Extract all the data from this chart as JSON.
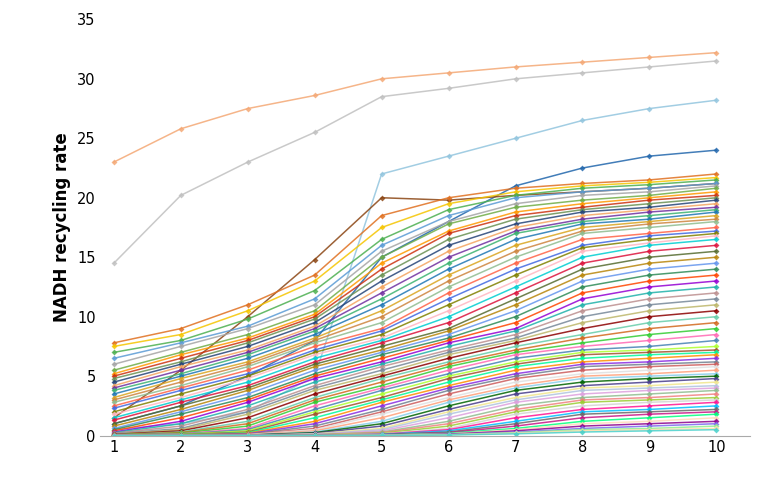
{
  "ylabel": "NADH recycling rate",
  "xlim": [
    0.8,
    10.5
  ],
  "ylim": [
    0,
    35
  ],
  "xticks": [
    1,
    2,
    3,
    4,
    5,
    6,
    7,
    8,
    9,
    10
  ],
  "yticks": [
    0,
    5,
    10,
    15,
    20,
    25,
    30,
    35
  ],
  "series": [
    {
      "color": "#F4A875",
      "y": [
        23.0,
        25.8,
        27.5,
        28.6,
        30.0,
        30.5,
        31.0,
        31.4,
        31.8,
        32.2
      ]
    },
    {
      "color": "#C0C0C0",
      "y": [
        14.5,
        20.2,
        23.0,
        25.5,
        28.5,
        29.2,
        30.0,
        30.5,
        31.0,
        31.5
      ]
    },
    {
      "color": "#92C5DE",
      "y": [
        0.5,
        1.0,
        2.0,
        5.0,
        22.0,
        23.5,
        25.0,
        26.5,
        27.5,
        28.2
      ]
    },
    {
      "color": "#2166AC",
      "y": [
        1.0,
        2.5,
        5.0,
        8.0,
        15.0,
        18.0,
        21.0,
        22.5,
        23.5,
        24.0
      ]
    },
    {
      "color": "#8B4513",
      "y": [
        1.5,
        5.5,
        10.0,
        14.8,
        20.0,
        19.8,
        20.2,
        20.5,
        20.8,
        21.2
      ]
    },
    {
      "color": "#E07020",
      "y": [
        7.8,
        9.0,
        11.0,
        13.5,
        18.5,
        20.0,
        20.8,
        21.2,
        21.5,
        22.0
      ]
    },
    {
      "color": "#F5C500",
      "y": [
        7.5,
        8.5,
        10.5,
        13.0,
        17.5,
        19.5,
        20.5,
        21.0,
        21.3,
        21.7
      ]
    },
    {
      "color": "#4CAF50",
      "y": [
        7.0,
        8.0,
        9.8,
        12.2,
        16.5,
        19.0,
        20.2,
        20.8,
        21.1,
        21.5
      ]
    },
    {
      "color": "#5B9BD5",
      "y": [
        6.5,
        7.8,
        9.2,
        11.5,
        16.0,
        18.5,
        20.0,
        20.5,
        20.8,
        21.2
      ]
    },
    {
      "color": "#A5A5A5",
      "y": [
        6.0,
        7.5,
        9.0,
        11.0,
        15.5,
        18.0,
        19.5,
        20.2,
        20.5,
        21.0
      ]
    },
    {
      "color": "#70AD47",
      "y": [
        5.5,
        7.0,
        8.5,
        10.5,
        15.0,
        17.8,
        19.2,
        19.8,
        20.2,
        20.8
      ]
    },
    {
      "color": "#FF9900",
      "y": [
        5.2,
        6.8,
        8.2,
        10.2,
        14.5,
        17.2,
        18.8,
        19.5,
        20.0,
        20.5
      ]
    },
    {
      "color": "#CC3311",
      "y": [
        5.0,
        6.5,
        8.0,
        10.0,
        14.0,
        17.0,
        18.5,
        19.2,
        19.8,
        20.2
      ]
    },
    {
      "color": "#6A9153",
      "y": [
        4.8,
        6.2,
        7.8,
        9.8,
        13.5,
        16.5,
        18.2,
        19.0,
        19.5,
        20.0
      ]
    },
    {
      "color": "#264478",
      "y": [
        4.5,
        6.0,
        7.5,
        9.5,
        13.0,
        16.0,
        17.8,
        18.8,
        19.2,
        19.8
      ]
    },
    {
      "color": "#F4A460",
      "y": [
        4.2,
        5.8,
        7.2,
        9.2,
        12.5,
        15.5,
        17.5,
        18.5,
        19.0,
        19.5
      ]
    },
    {
      "color": "#7030A0",
      "y": [
        4.0,
        5.5,
        7.0,
        9.0,
        12.0,
        15.0,
        17.2,
        18.2,
        18.8,
        19.2
      ]
    },
    {
      "color": "#3CB371",
      "y": [
        3.8,
        5.2,
        6.8,
        8.8,
        11.5,
        14.5,
        17.0,
        18.0,
        18.5,
        19.0
      ]
    },
    {
      "color": "#1F77B4",
      "y": [
        3.5,
        5.0,
        6.5,
        8.5,
        11.0,
        14.0,
        16.5,
        17.8,
        18.2,
        18.8
      ]
    },
    {
      "color": "#DAA520",
      "y": [
        3.2,
        4.8,
        6.2,
        8.2,
        10.5,
        13.5,
        16.0,
        17.5,
        18.0,
        18.5
      ]
    },
    {
      "color": "#CD853F",
      "y": [
        3.0,
        4.5,
        6.0,
        8.0,
        10.0,
        13.0,
        15.5,
        17.2,
        17.8,
        18.2
      ]
    },
    {
      "color": "#8FBC8F",
      "y": [
        2.8,
        4.2,
        5.8,
        7.8,
        9.5,
        12.5,
        15.0,
        17.0,
        17.5,
        18.0
      ]
    },
    {
      "color": "#FF6347",
      "y": [
        2.5,
        4.0,
        5.5,
        7.5,
        9.0,
        12.0,
        14.5,
        16.5,
        17.0,
        17.5
      ]
    },
    {
      "color": "#4169E1",
      "y": [
        2.3,
        3.8,
        5.2,
        7.2,
        8.8,
        11.5,
        14.0,
        16.0,
        16.8,
        17.2
      ]
    },
    {
      "color": "#808000",
      "y": [
        2.0,
        3.5,
        5.0,
        7.0,
        8.5,
        11.0,
        13.5,
        15.8,
        16.5,
        17.0
      ]
    },
    {
      "color": "#FFB6C1",
      "y": [
        1.8,
        3.2,
        4.8,
        6.8,
        8.2,
        10.5,
        13.0,
        15.5,
        16.2,
        16.8
      ]
    },
    {
      "color": "#00CED1",
      "y": [
        1.5,
        3.0,
        4.5,
        6.5,
        8.0,
        10.0,
        12.5,
        15.0,
        16.0,
        16.5
      ]
    },
    {
      "color": "#DC143C",
      "y": [
        1.3,
        2.8,
        4.2,
        6.2,
        7.8,
        9.5,
        12.0,
        14.5,
        15.5,
        16.0
      ]
    },
    {
      "color": "#556B2F",
      "y": [
        1.0,
        2.5,
        4.0,
        6.0,
        7.5,
        9.0,
        11.5,
        14.0,
        15.0,
        15.5
      ]
    },
    {
      "color": "#B8860B",
      "y": [
        0.8,
        2.2,
        3.8,
        5.8,
        7.2,
        8.8,
        11.0,
        13.5,
        14.5,
        15.0
      ]
    },
    {
      "color": "#6495ED",
      "y": [
        0.6,
        2.0,
        3.5,
        5.5,
        7.0,
        8.5,
        10.5,
        13.0,
        14.0,
        14.5
      ]
    },
    {
      "color": "#2E8B57",
      "y": [
        0.5,
        1.8,
        3.2,
        5.2,
        6.8,
        8.2,
        10.0,
        12.5,
        13.5,
        14.0
      ]
    },
    {
      "color": "#FF4500",
      "y": [
        0.4,
        1.5,
        3.0,
        5.0,
        6.5,
        8.0,
        9.5,
        12.0,
        13.0,
        13.5
      ]
    },
    {
      "color": "#9400D3",
      "y": [
        0.3,
        1.2,
        2.8,
        4.8,
        6.2,
        7.8,
        9.0,
        11.5,
        12.5,
        13.0
      ]
    },
    {
      "color": "#20B2AA",
      "y": [
        0.25,
        1.0,
        2.5,
        4.5,
        6.0,
        7.5,
        8.8,
        11.0,
        12.0,
        12.5
      ]
    },
    {
      "color": "#BC8F8F",
      "y": [
        0.2,
        0.8,
        2.2,
        4.2,
        5.8,
        7.2,
        8.5,
        10.5,
        11.5,
        12.0
      ]
    },
    {
      "color": "#778899",
      "y": [
        0.15,
        0.6,
        2.0,
        4.0,
        5.5,
        7.0,
        8.2,
        10.0,
        11.0,
        11.5
      ]
    },
    {
      "color": "#BDB76B",
      "y": [
        0.12,
        0.5,
        1.8,
        3.8,
        5.2,
        6.8,
        8.0,
        9.5,
        10.5,
        11.0
      ]
    },
    {
      "color": "#8B0000",
      "y": [
        0.1,
        0.4,
        1.5,
        3.5,
        5.0,
        6.5,
        7.8,
        9.0,
        10.0,
        10.5
      ]
    },
    {
      "color": "#66CDAA",
      "y": [
        0.08,
        0.3,
        1.2,
        3.2,
        4.8,
        6.2,
        7.5,
        8.5,
        9.5,
        10.0
      ]
    },
    {
      "color": "#D2691E",
      "y": [
        0.06,
        0.25,
        1.0,
        3.0,
        4.5,
        6.0,
        7.2,
        8.2,
        9.0,
        9.5
      ]
    },
    {
      "color": "#32CD32",
      "y": [
        0.05,
        0.2,
        0.8,
        2.8,
        4.2,
        5.8,
        7.0,
        7.8,
        8.5,
        9.0
      ]
    },
    {
      "color": "#FF69B4",
      "y": [
        0.04,
        0.15,
        0.6,
        2.5,
        4.0,
        5.5,
        6.8,
        7.5,
        8.0,
        8.5
      ]
    },
    {
      "color": "#4682B4",
      "y": [
        0.03,
        0.12,
        0.5,
        2.2,
        3.8,
        5.2,
        6.5,
        7.2,
        7.5,
        8.0
      ]
    },
    {
      "color": "#ADFF2F",
      "y": [
        0.025,
        0.1,
        0.4,
        2.0,
        3.5,
        5.0,
        6.2,
        7.0,
        7.2,
        7.5
      ]
    },
    {
      "color": "#A0522D",
      "y": [
        0.02,
        0.08,
        0.3,
        1.8,
        3.2,
        4.8,
        6.0,
        6.8,
        7.0,
        7.2
      ]
    },
    {
      "color": "#00FA9A",
      "y": [
        0.015,
        0.06,
        0.25,
        1.5,
        3.0,
        4.5,
        5.8,
        6.5,
        6.8,
        7.0
      ]
    },
    {
      "color": "#FF8C00",
      "y": [
        0.012,
        0.05,
        0.2,
        1.2,
        2.8,
        4.2,
        5.5,
        6.2,
        6.5,
        6.8
      ]
    },
    {
      "color": "#8A2BE2",
      "y": [
        0.01,
        0.04,
        0.15,
        1.0,
        2.5,
        4.0,
        5.2,
        6.0,
        6.2,
        6.5
      ]
    },
    {
      "color": "#708090",
      "y": [
        0.008,
        0.03,
        0.12,
        0.8,
        2.2,
        3.8,
        5.0,
        5.8,
        6.0,
        6.2
      ]
    },
    {
      "color": "#CD5C5C",
      "y": [
        0.006,
        0.025,
        0.1,
        0.6,
        2.0,
        3.5,
        4.8,
        5.5,
        5.8,
        6.0
      ]
    },
    {
      "color": "#E0E0E0",
      "y": [
        0.005,
        0.02,
        0.08,
        0.5,
        1.8,
        3.2,
        4.5,
        5.2,
        5.5,
        5.8
      ]
    },
    {
      "color": "#FFA07A",
      "y": [
        0.004,
        0.015,
        0.06,
        0.4,
        1.5,
        3.0,
        4.2,
        5.0,
        5.2,
        5.5
      ]
    },
    {
      "color": "#87CEEB",
      "y": [
        0.003,
        0.012,
        0.05,
        0.3,
        1.2,
        2.8,
        4.0,
        4.8,
        5.0,
        5.2
      ]
    },
    {
      "color": "#006400",
      "y": [
        0.002,
        0.01,
        0.04,
        0.25,
        1.0,
        2.5,
        3.8,
        4.5,
        4.8,
        5.0
      ]
    },
    {
      "color": "#483D8B",
      "y": [
        0.001,
        0.008,
        0.03,
        0.2,
        0.8,
        2.2,
        3.5,
        4.2,
        4.5,
        4.8
      ]
    },
    {
      "color": "#F0E68C",
      "y": [
        0.001,
        0.006,
        0.025,
        0.15,
        0.6,
        2.0,
        3.2,
        4.0,
        4.2,
        4.5
      ]
    },
    {
      "color": "#B0C4DE",
      "y": [
        0.001,
        0.005,
        0.02,
        0.12,
        0.5,
        1.8,
        3.0,
        3.8,
        4.0,
        4.2
      ]
    },
    {
      "color": "#DDA0DD",
      "y": [
        0.001,
        0.004,
        0.015,
        0.1,
        0.4,
        1.5,
        2.8,
        3.5,
        3.8,
        4.0
      ]
    },
    {
      "color": "#8FBC8F",
      "y": [
        0.001,
        0.003,
        0.012,
        0.08,
        0.3,
        1.2,
        2.5,
        3.2,
        3.5,
        3.8
      ]
    },
    {
      "color": "#F08080",
      "y": [
        0.001,
        0.002,
        0.01,
        0.06,
        0.25,
        1.0,
        2.2,
        3.0,
        3.2,
        3.5
      ]
    },
    {
      "color": "#9ACD32",
      "y": [
        0.001,
        0.002,
        0.008,
        0.05,
        0.2,
        0.8,
        2.0,
        2.8,
        3.0,
        3.2
      ]
    },
    {
      "color": "#D3D3D3",
      "y": [
        0.001,
        0.001,
        0.006,
        0.04,
        0.15,
        0.6,
        1.8,
        2.5,
        2.8,
        3.0
      ]
    },
    {
      "color": "#FF1493",
      "y": [
        0.001,
        0.001,
        0.005,
        0.03,
        0.12,
        0.5,
        1.5,
        2.2,
        2.5,
        2.8
      ]
    },
    {
      "color": "#00BFFF",
      "y": [
        0.001,
        0.001,
        0.004,
        0.025,
        0.1,
        0.4,
        1.2,
        2.0,
        2.2,
        2.5
      ]
    },
    {
      "color": "#696969",
      "y": [
        0.001,
        0.001,
        0.003,
        0.02,
        0.08,
        0.3,
        1.0,
        1.8,
        2.0,
        2.2
      ]
    },
    {
      "color": "#C71585",
      "y": [
        0.001,
        0.001,
        0.002,
        0.015,
        0.06,
        0.25,
        0.8,
        1.5,
        1.8,
        2.0
      ]
    },
    {
      "color": "#00FF7F",
      "y": [
        0.001,
        0.001,
        0.002,
        0.01,
        0.05,
        0.2,
        0.6,
        1.2,
        1.5,
        1.8
      ]
    },
    {
      "color": "#FFDAB9",
      "y": [
        0.001,
        0.001,
        0.001,
        0.008,
        0.04,
        0.15,
        0.5,
        1.0,
        1.2,
        1.5
      ]
    },
    {
      "color": "#8B008B",
      "y": [
        0.001,
        0.001,
        0.001,
        0.006,
        0.03,
        0.12,
        0.4,
        0.8,
        1.0,
        1.2
      ]
    },
    {
      "color": "#7B68EE",
      "y": [
        0.001,
        0.001,
        0.001,
        0.004,
        0.025,
        0.1,
        0.3,
        0.6,
        0.8,
        1.0
      ]
    },
    {
      "color": "#90EE90",
      "y": [
        0.001,
        0.001,
        0.001,
        0.003,
        0.02,
        0.08,
        0.25,
        0.5,
        0.6,
        0.8
      ]
    },
    {
      "color": "#FFDEAD",
      "y": [
        0.001,
        0.001,
        0.001,
        0.002,
        0.015,
        0.06,
        0.2,
        0.4,
        0.5,
        0.6
      ]
    },
    {
      "color": "#48D1CC",
      "y": [
        0.001,
        0.001,
        0.001,
        0.001,
        0.01,
        0.05,
        0.15,
        0.3,
        0.4,
        0.5
      ]
    }
  ]
}
